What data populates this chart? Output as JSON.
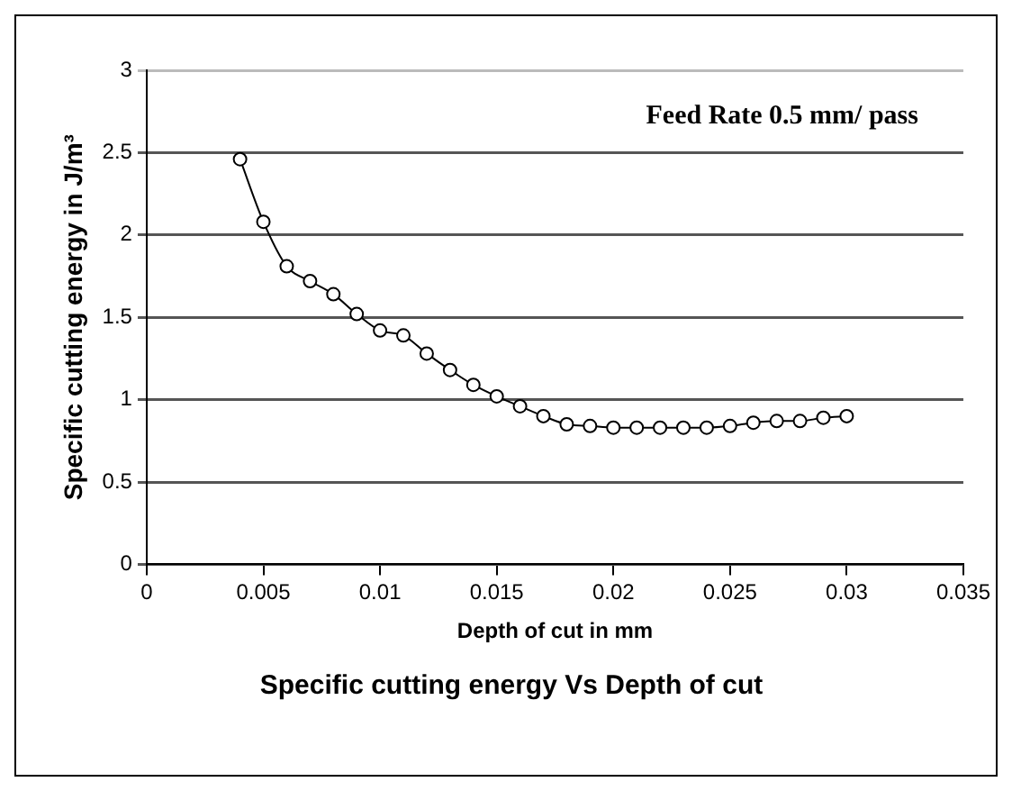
{
  "chart_data": {
    "type": "line",
    "title": "Specific cutting energy Vs Depth of cut",
    "xlabel": "Depth of cut in mm",
    "ylabel": "Specific cutting energy in J/m³",
    "annotations": [
      "Feed Rate 0.5 mm/ pass"
    ],
    "x": [
      0.004,
      0.005,
      0.006,
      0.007,
      0.008,
      0.009,
      0.01,
      0.011,
      0.012,
      0.013,
      0.014,
      0.015,
      0.016,
      0.017,
      0.018,
      0.019,
      0.02,
      0.021,
      0.022,
      0.023,
      0.024,
      0.025,
      0.026,
      0.027,
      0.028,
      0.029,
      0.03
    ],
    "series": [
      {
        "color": "#000000",
        "values": [
          2.46,
          2.08,
          1.81,
          1.72,
          1.64,
          1.52,
          1.42,
          1.39,
          1.28,
          1.18,
          1.09,
          1.02,
          0.96,
          0.9,
          0.85,
          0.84,
          0.83,
          0.83,
          0.83,
          0.83,
          0.83,
          0.84,
          0.86,
          0.87,
          0.87,
          0.89,
          0.9
        ]
      }
    ],
    "xlim": [
      0,
      0.035
    ],
    "xticks": [
      0,
      0.005,
      0.01,
      0.015,
      0.02,
      0.025,
      0.03,
      0.035
    ],
    "ylim": [
      0,
      3
    ],
    "yticks": [
      0,
      0.5,
      1,
      1.5,
      2,
      2.5,
      3
    ],
    "grid": "y",
    "legend": false,
    "marker": "circle",
    "line_style": "solid"
  }
}
